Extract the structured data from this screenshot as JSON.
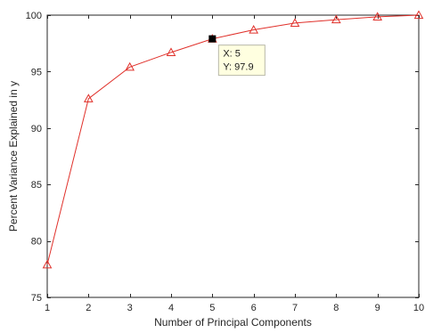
{
  "chart_data": {
    "type": "line",
    "xlabel": "Number of Principal Components",
    "ylabel": "Percent Variance Explained in y",
    "xlim": [
      1,
      10
    ],
    "ylim": [
      75,
      100
    ],
    "xticks": [
      1,
      2,
      3,
      4,
      5,
      6,
      7,
      8,
      9,
      10
    ],
    "yticks": [
      75,
      80,
      85,
      90,
      95,
      100
    ],
    "grid": false,
    "series": [
      {
        "x": [
          1,
          2,
          3,
          4,
          5,
          6,
          7,
          8,
          9,
          10
        ],
        "y": [
          77.9,
          92.6,
          95.4,
          96.7,
          97.9,
          98.7,
          99.3,
          99.6,
          99.85,
          100.0
        ],
        "color": "#e0302a",
        "marker": "triangle"
      }
    ],
    "datatip": {
      "x": 5,
      "y": 97.9,
      "line1": "X: 5",
      "line2": "Y: 97.9",
      "background": "#ffffe0",
      "marker_color": "#000000"
    }
  }
}
